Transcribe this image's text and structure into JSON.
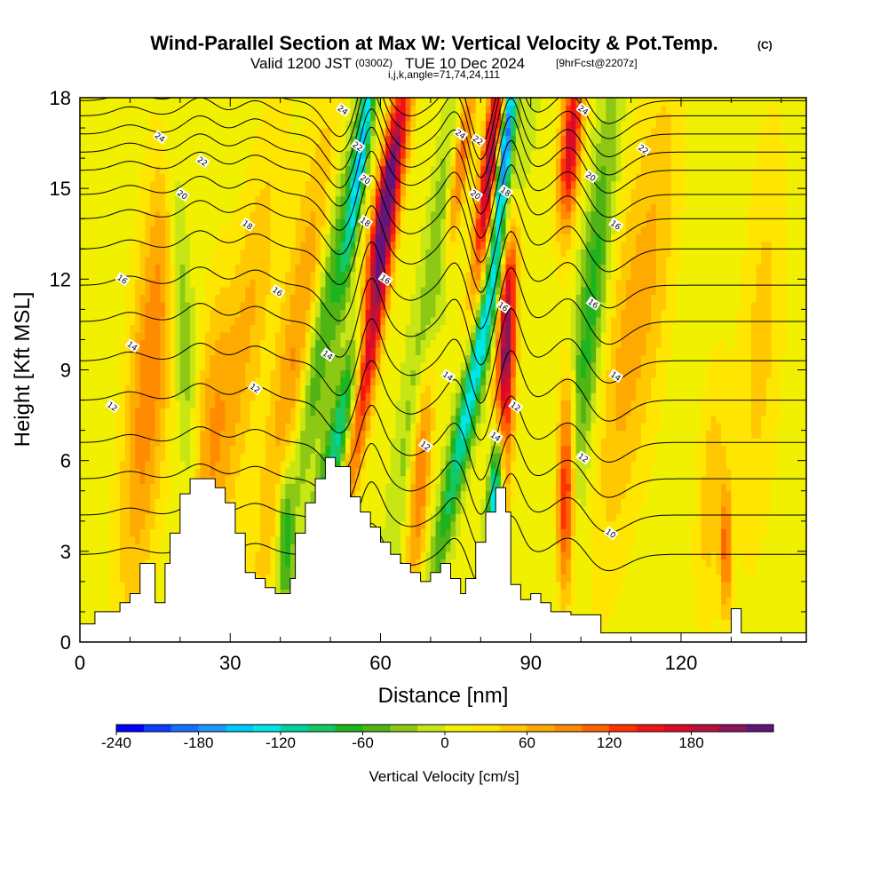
{
  "title": {
    "main": "Wind-Parallel Section at Max W: Vertical Velocity & Pot.Temp.",
    "main_suffix": "(C)",
    "valid_a": "Valid 1200 JST",
    "valid_b": "(0300Z)",
    "valid_c": "TUE 10 Dec 2024",
    "valid_d": "[9hrFcst@2207z]",
    "indices": "i,j,k,angle=71,74,24,111"
  },
  "chart_data": {
    "type": "heatmap",
    "xlabel": "Distance [nm]",
    "ylabel": "Height [Kft MSL]",
    "xlim": [
      0,
      145
    ],
    "ylim": [
      0,
      18
    ],
    "x_ticks": [
      "0",
      "30",
      "60",
      "90",
      "120"
    ],
    "x_tick_values": [
      0,
      30,
      60,
      90,
      120
    ],
    "y_ticks": [
      "0",
      "3",
      "6",
      "9",
      "12",
      "15",
      "18"
    ],
    "y_tick_values": [
      0,
      3,
      6,
      9,
      12,
      15,
      18
    ],
    "colorbar": {
      "label": "Vertical Velocity [cm/s]",
      "min": -240,
      "max": 220,
      "step": 20,
      "tick_values": [
        -240,
        -180,
        -120,
        -60,
        0,
        60,
        120,
        180
      ],
      "tick_labels": [
        "-240",
        "-180",
        "-120",
        "-60",
        "0",
        "60",
        "120",
        "180"
      ],
      "colors": [
        "#0000ff",
        "#0a3cff",
        "#1a6eff",
        "#1e96ff",
        "#00c8ff",
        "#00e6e6",
        "#00d2a0",
        "#14c864",
        "#1eb41e",
        "#50b414",
        "#8cc814",
        "#c8e614",
        "#f0f000",
        "#ffe600",
        "#ffc800",
        "#ffaa00",
        "#ff8c00",
        "#ff6400",
        "#ff3200",
        "#f01414",
        "#dc0a28",
        "#b4143c",
        "#8c145a",
        "#64147a"
      ]
    },
    "terrain": [
      [
        0,
        0.6
      ],
      [
        3,
        0.6
      ],
      [
        3,
        1.0
      ],
      [
        8,
        1.0
      ],
      [
        8,
        1.3
      ],
      [
        10,
        1.3
      ],
      [
        10,
        1.6
      ],
      [
        12,
        1.6
      ],
      [
        12,
        2.6
      ],
      [
        15,
        2.6
      ],
      [
        15,
        1.3
      ],
      [
        17,
        1.3
      ],
      [
        17,
        2.6
      ],
      [
        18,
        2.6
      ],
      [
        18,
        3.6
      ],
      [
        20,
        3.6
      ],
      [
        20,
        4.9
      ],
      [
        22,
        4.9
      ],
      [
        22,
        5.4
      ],
      [
        27,
        5.4
      ],
      [
        27,
        5.1
      ],
      [
        29,
        5.1
      ],
      [
        29,
        4.6
      ],
      [
        31,
        4.6
      ],
      [
        31,
        3.6
      ],
      [
        33,
        3.6
      ],
      [
        33,
        2.3
      ],
      [
        35,
        2.3
      ],
      [
        35,
        2.1
      ],
      [
        37,
        2.1
      ],
      [
        37,
        1.8
      ],
      [
        39,
        1.8
      ],
      [
        39,
        1.6
      ],
      [
        42,
        1.6
      ],
      [
        42,
        2.1
      ],
      [
        43,
        2.1
      ],
      [
        43,
        3.6
      ],
      [
        45,
        3.6
      ],
      [
        45,
        4.6
      ],
      [
        47,
        4.6
      ],
      [
        47,
        5.4
      ],
      [
        49,
        5.4
      ],
      [
        49,
        6.1
      ],
      [
        51,
        6.1
      ],
      [
        51,
        5.8
      ],
      [
        54,
        5.8
      ],
      [
        54,
        4.8
      ],
      [
        56,
        4.8
      ],
      [
        56,
        4.3
      ],
      [
        58,
        4.3
      ],
      [
        58,
        3.8
      ],
      [
        60,
        3.8
      ],
      [
        60,
        3.3
      ],
      [
        62,
        3.3
      ],
      [
        62,
        2.9
      ],
      [
        64,
        2.9
      ],
      [
        64,
        2.6
      ],
      [
        66,
        2.6
      ],
      [
        66,
        2.3
      ],
      [
        68,
        2.3
      ],
      [
        68,
        2.0
      ],
      [
        70,
        2.0
      ],
      [
        70,
        2.3
      ],
      [
        72,
        2.3
      ],
      [
        72,
        2.6
      ],
      [
        74,
        2.6
      ],
      [
        74,
        2.1
      ],
      [
        76,
        2.1
      ],
      [
        76,
        1.6
      ],
      [
        77,
        1.6
      ],
      [
        77,
        2.1
      ],
      [
        79,
        2.1
      ],
      [
        79,
        3.3
      ],
      [
        81,
        3.3
      ],
      [
        81,
        4.3
      ],
      [
        83,
        4.3
      ],
      [
        83,
        5.1
      ],
      [
        85,
        5.1
      ],
      [
        85,
        4.3
      ],
      [
        86,
        4.3
      ],
      [
        86,
        1.9
      ],
      [
        88,
        1.9
      ],
      [
        88,
        1.4
      ],
      [
        90,
        1.4
      ],
      [
        90,
        1.6
      ],
      [
        92,
        1.6
      ],
      [
        92,
        1.3
      ],
      [
        94,
        1.3
      ],
      [
        94,
        1.0
      ],
      [
        98,
        1.0
      ],
      [
        98,
        0.9
      ],
      [
        104,
        0.9
      ],
      [
        104,
        0.3
      ],
      [
        130,
        0.3
      ],
      [
        130,
        1.1
      ],
      [
        132,
        1.1
      ],
      [
        132,
        0.3
      ],
      [
        145,
        0.3
      ]
    ],
    "velocity_features": [
      {
        "x": 14,
        "z": 9,
        "w": 90,
        "sx": 3.0,
        "sz": 5.5,
        "tilt": 0.5
      },
      {
        "x": 20,
        "z": 12,
        "w": -55,
        "sx": 1.5,
        "sz": 5.0,
        "tilt": -0.3
      },
      {
        "x": 26,
        "z": 7,
        "w": 60,
        "sx": 2.5,
        "sz": 3.5,
        "tilt": 0.4
      },
      {
        "x": 33,
        "z": 10,
        "w": 55,
        "sx": 3.0,
        "sz": 5.0,
        "tilt": 0.8
      },
      {
        "x": 41,
        "z": 3.5,
        "w": -80,
        "sx": 1.2,
        "sz": 1.8,
        "tilt": 0
      },
      {
        "x": 43,
        "z": 9,
        "w": 80,
        "sx": 3.0,
        "sz": 6.0,
        "tilt": 0.8
      },
      {
        "x": 48,
        "z": 10,
        "w": -90,
        "sx": 2.0,
        "sz": 5.0,
        "tilt": 1.0
      },
      {
        "x": 52,
        "z": 7,
        "w": -120,
        "sx": 1.8,
        "sz": 3.0,
        "tilt": 1.2
      },
      {
        "x": 59,
        "z": 11,
        "w": 190,
        "sx": 1.5,
        "sz": 4.5,
        "tilt": 0.9
      },
      {
        "x": 61,
        "z": 15,
        "w": 160,
        "sx": 1.4,
        "sz": 3.0,
        "tilt": 1.0
      },
      {
        "x": 56,
        "z": 16,
        "w": -140,
        "sx": 1.0,
        "sz": 2.8,
        "tilt": 0.8
      },
      {
        "x": 68,
        "z": 6,
        "w": 110,
        "sx": 1.5,
        "sz": 3.0,
        "tilt": 0.4
      },
      {
        "x": 71,
        "z": 12,
        "w": -70,
        "sx": 2.0,
        "sz": 6.0,
        "tilt": 0.9
      },
      {
        "x": 76,
        "z": 16,
        "w": 140,
        "sx": 1.3,
        "sz": 2.5,
        "tilt": 0.8
      },
      {
        "x": 79,
        "z": 9,
        "w": -150,
        "sx": 1.5,
        "sz": 4.5,
        "tilt": 1.2
      },
      {
        "x": 82,
        "z": 16,
        "w": 200,
        "sx": 1.3,
        "sz": 3.0,
        "tilt": 0.7
      },
      {
        "x": 85,
        "z": 9.5,
        "w": 220,
        "sx": 1.3,
        "sz": 3.5,
        "tilt": 0.2
      },
      {
        "x": 85,
        "z": 16.5,
        "w": -230,
        "sx": 1.0,
        "sz": 2.2,
        "tilt": 0.6
      },
      {
        "x": 83,
        "z": 5,
        "w": -200,
        "sx": 1.0,
        "sz": 1.8,
        "tilt": 0.4
      },
      {
        "x": 97,
        "z": 5,
        "w": 160,
        "sx": 1.2,
        "sz": 2.5,
        "tilt": 0.1
      },
      {
        "x": 98,
        "z": 16.5,
        "w": 170,
        "sx": 1.5,
        "sz": 2.0,
        "tilt": 0.4
      },
      {
        "x": 102,
        "z": 11,
        "w": -80,
        "sx": 2.0,
        "sz": 5.0,
        "tilt": 0.6
      },
      {
        "x": 108,
        "z": 9,
        "w": 50,
        "sx": 3.0,
        "sz": 5.0,
        "tilt": 0.5
      },
      {
        "x": 115,
        "z": 13,
        "w": 45,
        "sx": 3.0,
        "sz": 5.0,
        "tilt": 0.5
      },
      {
        "x": 126,
        "z": 5,
        "w": 45,
        "sx": 2.0,
        "sz": 3.0,
        "tilt": 0.3
      },
      {
        "x": 129,
        "z": 3,
        "w": 100,
        "sx": 0.8,
        "sz": 1.5,
        "tilt": 0
      },
      {
        "x": 136,
        "z": 10,
        "w": 40,
        "sx": 3.0,
        "sz": 5.0,
        "tilt": 0.3
      }
    ],
    "theta_contours": {
      "levels": [
        10,
        11,
        12,
        13,
        14,
        15,
        16,
        17,
        18,
        19,
        20,
        21,
        22,
        23,
        24,
        25
      ],
      "base_heights": [
        2.9,
        4.2,
        5.4,
        6.6,
        8.0,
        9.3,
        10.6,
        11.8,
        13.0,
        14.0,
        14.8,
        15.6,
        16.2,
        16.8,
        17.4,
        17.9
      ],
      "wave_features": [
        {
          "x": 10,
          "amp": 0.3,
          "w": 3
        },
        {
          "x": 24,
          "amp": 0.6,
          "w": 3
        },
        {
          "x": 35,
          "amp": 0.5,
          "w": 3
        },
        {
          "x": 52,
          "amp": -1.2,
          "w": 3
        },
        {
          "x": 58,
          "amp": 1.6,
          "w": 2
        },
        {
          "x": 66,
          "amp": -0.5,
          "w": 3
        },
        {
          "x": 75,
          "amp": 0.8,
          "w": 2
        },
        {
          "x": 80,
          "amp": -1.5,
          "w": 2
        },
        {
          "x": 86,
          "amp": 1.8,
          "w": 2
        },
        {
          "x": 98,
          "amp": 0.9,
          "w": 3
        },
        {
          "x": 105,
          "amp": -0.8,
          "w": 4
        }
      ],
      "labels": [
        {
          "text": "12",
          "x": 6.5,
          "z": 7.8
        },
        {
          "text": "14",
          "x": 10.5,
          "z": 9.8
        },
        {
          "text": "16",
          "x": 8.5,
          "z": 12.0
        },
        {
          "text": "24",
          "x": 16,
          "z": 16.7
        },
        {
          "text": "22",
          "x": 24.5,
          "z": 15.9
        },
        {
          "text": "20",
          "x": 20.5,
          "z": 14.8
        },
        {
          "text": "18",
          "x": 33.5,
          "z": 13.8
        },
        {
          "text": "16",
          "x": 39.5,
          "z": 11.6
        },
        {
          "text": "12",
          "x": 35,
          "z": 8.4
        },
        {
          "text": "14",
          "x": 49.5,
          "z": 9.5
        },
        {
          "text": "24",
          "x": 52.5,
          "z": 17.6
        },
        {
          "text": "22",
          "x": 55.5,
          "z": 16.4
        },
        {
          "text": "20",
          "x": 57,
          "z": 15.3
        },
        {
          "text": "18",
          "x": 57,
          "z": 13.9
        },
        {
          "text": "16",
          "x": 61,
          "z": 12.0
        },
        {
          "text": "12",
          "x": 69,
          "z": 6.5
        },
        {
          "text": "14",
          "x": 73.5,
          "z": 8.8
        },
        {
          "text": "24",
          "x": 76,
          "z": 16.8
        },
        {
          "text": "22",
          "x": 79.5,
          "z": 16.6
        },
        {
          "text": "20",
          "x": 79,
          "z": 14.8
        },
        {
          "text": "18",
          "x": 85,
          "z": 14.9
        },
        {
          "text": "16",
          "x": 84.5,
          "z": 11.1
        },
        {
          "text": "14",
          "x": 83,
          "z": 6.8
        },
        {
          "text": "12",
          "x": 87,
          "z": 7.8
        },
        {
          "text": "12",
          "x": 100.5,
          "z": 6.1
        },
        {
          "text": "10",
          "x": 106,
          "z": 3.6
        },
        {
          "text": "14",
          "x": 107,
          "z": 8.8
        },
        {
          "text": "16",
          "x": 102.5,
          "z": 11.2
        },
        {
          "text": "16",
          "x": 107,
          "z": 13.8
        },
        {
          "text": "20",
          "x": 102,
          "z": 15.4
        },
        {
          "text": "22",
          "x": 112.5,
          "z": 16.3
        },
        {
          "text": "24",
          "x": 100.5,
          "z": 17.6
        }
      ]
    }
  }
}
